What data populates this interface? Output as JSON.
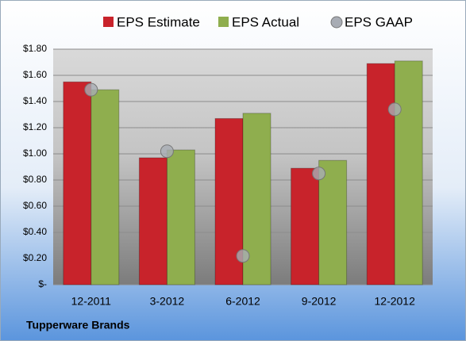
{
  "chart_data": {
    "type": "bar",
    "title": "Tupperware Brands",
    "categories": [
      "12-2011",
      "3-2012",
      "6-2012",
      "9-2012",
      "12-2012"
    ],
    "series": [
      {
        "name": "EPS Estimate",
        "type": "bar",
        "color": "#c8232b",
        "values": [
          1.55,
          0.97,
          1.27,
          0.89,
          1.69
        ]
      },
      {
        "name": "EPS Actual",
        "type": "bar",
        "color": "#8fae4e",
        "values": [
          1.49,
          1.03,
          1.31,
          0.95,
          1.71
        ]
      },
      {
        "name": "EPS GAAP",
        "type": "scatter",
        "color": "#a8acb4",
        "values": [
          1.49,
          1.02,
          0.22,
          0.85,
          1.34
        ]
      }
    ],
    "ylim": [
      0,
      1.8
    ],
    "yticks": [
      {
        "value": 0,
        "label": "$-"
      },
      {
        "value": 0.2,
        "label": "$0.20"
      },
      {
        "value": 0.4,
        "label": "$0.40"
      },
      {
        "value": 0.6,
        "label": "$0.60"
      },
      {
        "value": 0.8,
        "label": "$0.80"
      },
      {
        "value": 1.0,
        "label": "$1.00"
      },
      {
        "value": 1.2,
        "label": "$1.20"
      },
      {
        "value": 1.4,
        "label": "$1.40"
      },
      {
        "value": 1.6,
        "label": "$1.60"
      },
      {
        "value": 1.8,
        "label": "$1.80"
      }
    ],
    "grid": true
  }
}
